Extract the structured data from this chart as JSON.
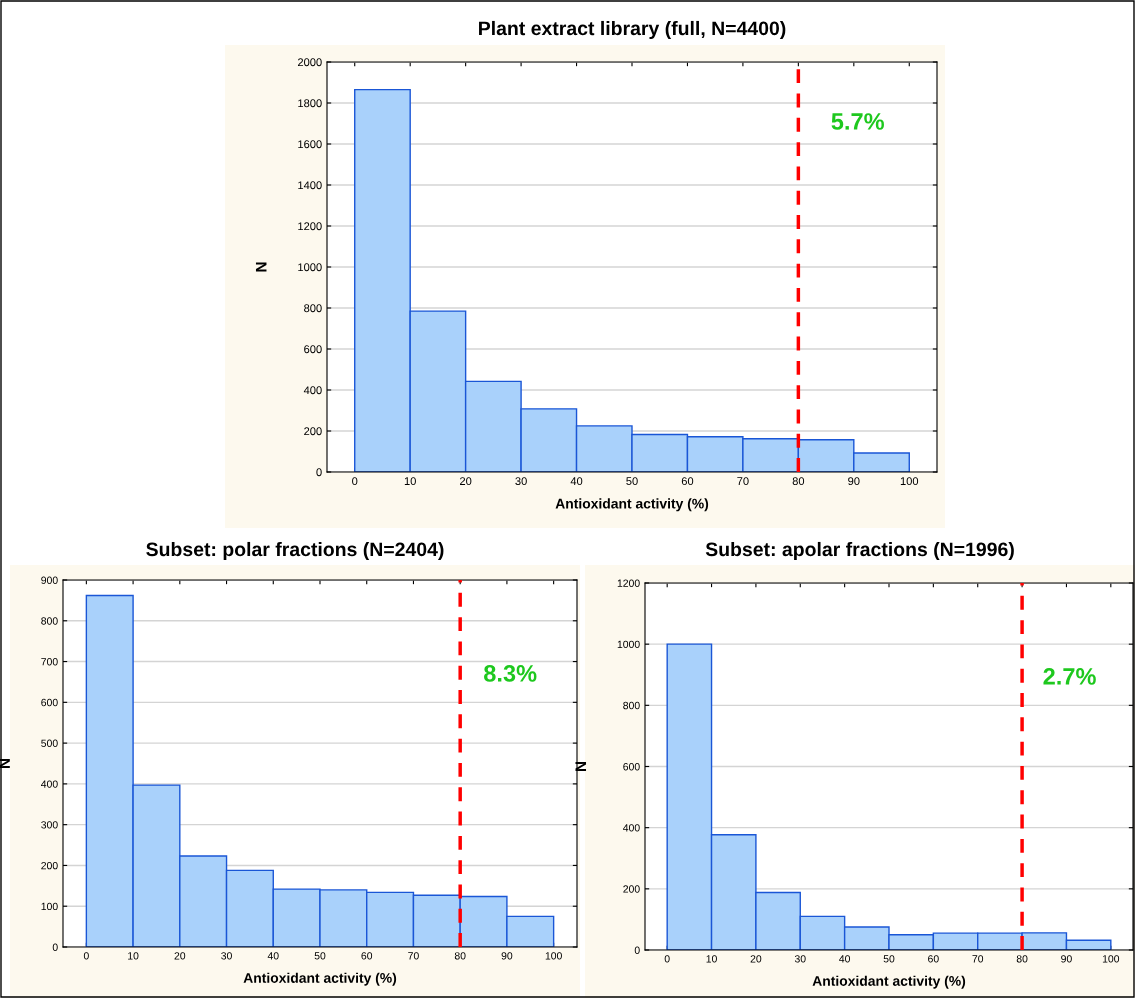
{
  "chart_data": [
    {
      "type": "histogram",
      "title": "Plant extract library (full, N=4400)",
      "xlabel": "Antioxidant activity (%)",
      "ylabel": "N",
      "bins": [
        0,
        10,
        20,
        30,
        40,
        50,
        60,
        70,
        80,
        90,
        100
      ],
      "values": [
        1865,
        785,
        442,
        308,
        225,
        183,
        172,
        162,
        157,
        93
      ],
      "color": "#a9d1fb",
      "xlim": [
        -5,
        105
      ],
      "xticks": [
        0,
        10,
        20,
        30,
        40,
        50,
        60,
        70,
        80,
        90,
        100
      ],
      "ylim": [
        0,
        2000
      ],
      "yticks": [
        0,
        200,
        400,
        600,
        800,
        1000,
        1200,
        1400,
        1600,
        1800,
        2000
      ],
      "grid": "y",
      "ref_lines": [
        {
          "axis": "x",
          "value": 80,
          "label": null,
          "color": "#ff0000",
          "line_style": "dashed"
        }
      ],
      "annotations": [
        "5.7%"
      ]
    },
    {
      "type": "histogram",
      "title": "Subset: polar fractions (N=2404)",
      "xlabel": "Antioxidant activity (%)",
      "ylabel": "N",
      "bins": [
        0,
        10,
        20,
        30,
        40,
        50,
        60,
        70,
        80,
        90,
        100
      ],
      "values": [
        862,
        397,
        223,
        188,
        142,
        140,
        134,
        127,
        124,
        75
      ],
      "color": "#a9d1fb",
      "xlim": [
        -5,
        105
      ],
      "xticks": [
        0,
        10,
        20,
        30,
        40,
        50,
        60,
        70,
        80,
        90,
        100
      ],
      "ylim": [
        0,
        900
      ],
      "yticks": [
        0,
        100,
        200,
        300,
        400,
        500,
        600,
        700,
        800,
        900
      ],
      "grid": "y",
      "ref_lines": [
        {
          "axis": "x",
          "value": 80,
          "label": null,
          "color": "#ff0000",
          "line_style": "dashed"
        }
      ],
      "annotations": [
        "8.3%"
      ]
    },
    {
      "type": "histogram",
      "title": "Subset: apolar fractions (N=1996)",
      "xlabel": "Antioxidant activity (%)",
      "ylabel": "N",
      "bins": [
        0,
        10,
        20,
        30,
        40,
        50,
        60,
        70,
        80,
        90,
        100
      ],
      "values": [
        1000,
        377,
        188,
        110,
        75,
        50,
        55,
        55,
        56,
        32
      ],
      "color": "#a9d1fb",
      "xlim": [
        -5,
        105
      ],
      "xticks": [
        0,
        10,
        20,
        30,
        40,
        50,
        60,
        70,
        80,
        90,
        100
      ],
      "ylim": [
        0,
        1200
      ],
      "yticks": [
        0,
        200,
        400,
        600,
        800,
        1000,
        1200
      ],
      "grid": "y",
      "ref_lines": [
        {
          "axis": "x",
          "value": 80,
          "label": null,
          "color": "#ff0000",
          "line_style": "dashed"
        }
      ],
      "annotations": [
        "2.7%"
      ]
    }
  ]
}
